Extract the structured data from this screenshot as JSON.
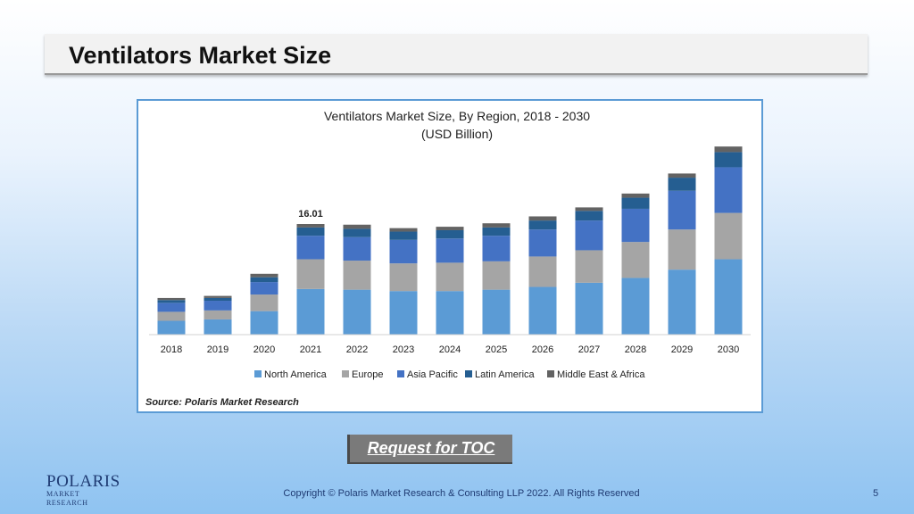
{
  "slide": {
    "title": "Ventilators Market Size",
    "toc_button": "Request for TOC",
    "logo_name": "POLARIS",
    "logo_sub": "MARKET RESEARCH",
    "copyright": "Copyright © Polaris Market Research & Consulting LLP 2022. All Rights Reserved",
    "page_number": "5"
  },
  "colors": {
    "north_america": "#5b9bd5",
    "europe": "#a5a5a5",
    "asia_pacific": "#4472c4",
    "latin_america": "#255e91",
    "middle_east_africa": "#636363"
  },
  "chart_data": {
    "type": "bar",
    "stacked": true,
    "title": "Ventilators Market Size, By Region, 2018 - 2030",
    "subtitle": "(USD Billion)",
    "source": "Source: Polaris Market Research",
    "categories": [
      "2018",
      "2019",
      "2020",
      "2021",
      "2022",
      "2023",
      "2024",
      "2025",
      "2026",
      "2027",
      "2028",
      "2029",
      "2030"
    ],
    "series": [
      {
        "name": "North America",
        "values": [
          2.0,
          2.2,
          3.4,
          6.6,
          6.5,
          6.3,
          6.3,
          6.5,
          6.9,
          7.5,
          8.2,
          9.4,
          10.9
        ]
      },
      {
        "name": "Europe",
        "values": [
          1.3,
          1.3,
          2.4,
          4.3,
          4.2,
          4.0,
          4.1,
          4.1,
          4.4,
          4.7,
          5.2,
          5.8,
          6.7
        ]
      },
      {
        "name": "Asia Pacific",
        "values": [
          1.3,
          1.4,
          1.8,
          3.4,
          3.4,
          3.4,
          3.5,
          3.7,
          3.9,
          4.3,
          4.8,
          5.6,
          6.6
        ]
      },
      {
        "name": "Latin America",
        "values": [
          0.4,
          0.4,
          0.7,
          1.2,
          1.2,
          1.2,
          1.2,
          1.2,
          1.3,
          1.4,
          1.6,
          1.9,
          2.2
        ]
      },
      {
        "name": "Middle East & Africa",
        "values": [
          0.3,
          0.3,
          0.5,
          0.5,
          0.6,
          0.5,
          0.5,
          0.6,
          0.6,
          0.5,
          0.6,
          0.6,
          0.8
        ]
      }
    ],
    "data_labels": [
      {
        "category": "2021",
        "text": "16.01"
      }
    ],
    "ylim": [
      0,
      28
    ],
    "xlabel": "",
    "ylabel": "",
    "grid": false,
    "legend_position": "bottom"
  }
}
